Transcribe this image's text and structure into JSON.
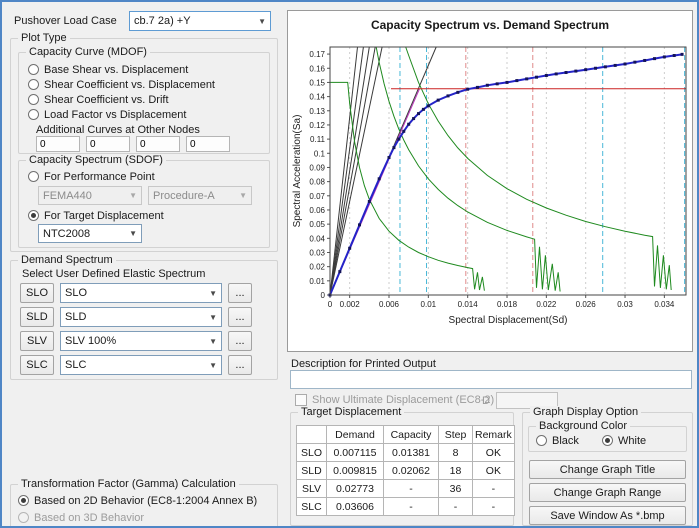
{
  "colors": {
    "accent_border": "#4f86c6",
    "window_bg": "#f0f0f0"
  },
  "left": {
    "load_case_label": "Pushover Load Case",
    "load_case_value": "cb.7 2a)  +Y",
    "plot_type_label": "Plot Type",
    "capacity_curve": {
      "label": "Capacity Curve (MDOF)",
      "options": [
        "Base Shear vs. Displacement",
        "Shear Coefficient vs. Displacement",
        "Shear Coefficient vs. Drift",
        "Load Factor vs Displacement"
      ],
      "additional_label": "Additional Curves at Other Nodes",
      "node_values": [
        "0",
        "0",
        "0",
        "0"
      ]
    },
    "capacity_spectrum": {
      "label": "Capacity Spectrum (SDOF)",
      "performance_point_label": "For Performance Point",
      "fema_value": "FEMA440",
      "procedure_value": "Procedure-A",
      "target_displacement_label": "For Target Displacement",
      "selected": "For Target Displacement",
      "code_value": "NTC2008"
    },
    "demand": {
      "label": "Demand Spectrum",
      "sub_label": "Select User Defined Elastic Spectrum",
      "more_label": "...",
      "rows": [
        {
          "key": "SLO",
          "value": "SLO"
        },
        {
          "key": "SLD",
          "value": "SLD"
        },
        {
          "key": "SLV",
          "value": "SLV 100%"
        },
        {
          "key": "SLC",
          "value": "SLC"
        }
      ]
    },
    "gamma": {
      "label": "Transformation Factor (Gamma) Calculation",
      "options": [
        "Based on 2D Behavior (EC8-1:2004  Annex B)",
        "Based on 3D Behavior"
      ],
      "selected": "Based on 2D Behavior (EC8-1:2004  Annex B)"
    }
  },
  "right": {
    "description_label": "Description for Printed Output",
    "description_value": "",
    "ultimate": {
      "label": "Show Ultimate Displacement  (EC8-2)",
      "checked": false,
      "d_label": "D",
      "value": ""
    },
    "target": {
      "label": "Target Displacement",
      "headers": [
        "",
        "Demand",
        "Capacity",
        "Step",
        "Remark"
      ],
      "rows": [
        {
          "key": "SLO",
          "cells": [
            "0.007115",
            "0.01381",
            "8",
            "OK"
          ]
        },
        {
          "key": "SLD",
          "cells": [
            "0.009815",
            "0.02062",
            "18",
            "OK"
          ]
        },
        {
          "key": "SLV",
          "cells": [
            "0.02773",
            "-",
            "36",
            "-"
          ]
        },
        {
          "key": "SLC",
          "cells": [
            "0.03606",
            "-",
            "-",
            "-"
          ]
        }
      ]
    },
    "graph_option": {
      "label": "Graph Display Option",
      "bg_label": "Background Color",
      "black_label": "Black",
      "white_label": "White",
      "selected": "White",
      "buttons": [
        "Change Graph Title",
        "Change Graph Range",
        "Save Window As *.bmp"
      ]
    }
  },
  "chart_data": {
    "type": "line",
    "title": "Capacity Spectrum vs. Demand Spectrum",
    "xlabel": "Spectral Displacement(Sd)",
    "ylabel": "Spectral Acceleration(Sa)",
    "xlim": [
      0,
      0.0362
    ],
    "ylim": [
      0,
      0.175
    ],
    "x_ticks": [
      0,
      0.002,
      0.006,
      0.01,
      0.014,
      0.018,
      0.022,
      0.026,
      0.03,
      0.034
    ],
    "y_ticks": [
      0,
      0.01,
      0.02,
      0.03,
      0.04,
      0.05,
      0.06,
      0.07,
      0.08,
      0.09,
      0.1,
      0.11,
      0.12,
      0.13,
      0.14,
      0.15,
      0.16,
      0.17
    ],
    "grid": "vertical-dashed",
    "legend": "none",
    "vlines": [
      {
        "name": "slo-demand",
        "x": 0.007115,
        "color": "#49b8d8"
      },
      {
        "name": "sld-demand",
        "x": 0.009815,
        "color": "#49b8d8"
      },
      {
        "name": "slo-capacity",
        "x": 0.01381,
        "color": "#e08a8a"
      },
      {
        "name": "sld-capacity",
        "x": 0.02062,
        "color": "#e08a8a"
      },
      {
        "name": "slv-demand",
        "x": 0.02773,
        "color": "#49b8d8"
      },
      {
        "name": "slc-demand",
        "x": 0.03606,
        "color": "#49b8d8"
      }
    ],
    "series": [
      {
        "name": "period-line-1",
        "color": "#3a3a3a",
        "width": 1,
        "points": [
          [
            0,
            0
          ],
          [
            0.0028,
            0.175
          ]
        ]
      },
      {
        "name": "period-line-2",
        "color": "#3a3a3a",
        "width": 1,
        "points": [
          [
            0,
            0
          ],
          [
            0.0034,
            0.175
          ]
        ]
      },
      {
        "name": "period-line-3",
        "color": "#3a3a3a",
        "width": 1,
        "points": [
          [
            0,
            0
          ],
          [
            0.004,
            0.175
          ]
        ]
      },
      {
        "name": "period-line-4",
        "color": "#3a3a3a",
        "width": 1,
        "points": [
          [
            0,
            0
          ],
          [
            0.0046,
            0.175
          ]
        ]
      },
      {
        "name": "period-line-5",
        "color": "#3a3a3a",
        "width": 1,
        "points": [
          [
            0,
            0
          ],
          [
            0.0053,
            0.175
          ]
        ]
      },
      {
        "name": "initial-stiffness-line",
        "color": "#3a3a3a",
        "width": 1,
        "points": [
          [
            0,
            0
          ],
          [
            0.0108,
            0.175
          ]
        ]
      },
      {
        "name": "demand-spectrum-slo",
        "color": "#1f8a1f",
        "width": 1,
        "points": [
          [
            0,
            0
          ],
          [
            0,
            0.15
          ],
          [
            0.0018,
            0.15
          ],
          [
            0.002,
            0.135
          ],
          [
            0.0025,
            0.108
          ],
          [
            0.003,
            0.09
          ],
          [
            0.0035,
            0.0771
          ],
          [
            0.004,
            0.0675
          ],
          [
            0.005,
            0.054
          ],
          [
            0.006,
            0.045
          ],
          [
            0.007,
            0.0386
          ],
          [
            0.008,
            0.0338
          ],
          [
            0.009,
            0.03
          ],
          [
            0.01,
            0.027
          ],
          [
            0.011,
            0.0245
          ],
          [
            0.012,
            0.0225
          ],
          [
            0.013,
            0.0208
          ],
          [
            0.014,
            0.0193
          ],
          [
            0.0145,
            0.0186
          ],
          [
            0.0147,
            0.004
          ],
          [
            0.015,
            0.016
          ],
          [
            0.0152,
            0.0035
          ],
          [
            0.0155,
            0.0128
          ],
          [
            0.0157,
            0.003
          ]
        ]
      },
      {
        "name": "demand-spectrum-sld",
        "color": "#1f8a1f",
        "width": 1,
        "points": [
          [
            0.0047,
            0.175
          ],
          [
            0.005,
            0.164
          ],
          [
            0.0055,
            0.149
          ],
          [
            0.006,
            0.1367
          ],
          [
            0.0065,
            0.1262
          ],
          [
            0.007,
            0.1171
          ],
          [
            0.0075,
            0.1093
          ],
          [
            0.008,
            0.1025
          ],
          [
            0.009,
            0.0911
          ],
          [
            0.01,
            0.082
          ],
          [
            0.011,
            0.0745
          ],
          [
            0.012,
            0.0683
          ],
          [
            0.013,
            0.0631
          ],
          [
            0.014,
            0.0586
          ],
          [
            0.016,
            0.0513
          ],
          [
            0.018,
            0.0456
          ],
          [
            0.02,
            0.041
          ],
          [
            0.0208,
            0.0394
          ],
          [
            0.021,
            0.005
          ],
          [
            0.0213,
            0.034
          ],
          [
            0.0216,
            0.004
          ],
          [
            0.0219,
            0.028
          ],
          [
            0.0222,
            0.0035
          ],
          [
            0.0226,
            0.022
          ],
          [
            0.0229,
            0.003
          ],
          [
            0.0232,
            0.016
          ],
          [
            0.0234,
            0.0025
          ]
        ]
      },
      {
        "name": "demand-spectrum-slv",
        "color": "#1f8a1f",
        "width": 1,
        "points": [
          [
            0.0077,
            0.175
          ],
          [
            0.008,
            0.169
          ],
          [
            0.009,
            0.15
          ],
          [
            0.01,
            0.135
          ],
          [
            0.011,
            0.1227
          ],
          [
            0.012,
            0.1125
          ],
          [
            0.013,
            0.1038
          ],
          [
            0.014,
            0.0964
          ],
          [
            0.016,
            0.0844
          ],
          [
            0.018,
            0.075
          ],
          [
            0.02,
            0.0675
          ],
          [
            0.022,
            0.0614
          ],
          [
            0.024,
            0.0563
          ],
          [
            0.026,
            0.0519
          ],
          [
            0.028,
            0.0482
          ],
          [
            0.03,
            0.045
          ],
          [
            0.032,
            0.0422
          ],
          [
            0.0328,
            0.0412
          ],
          [
            0.033,
            0.006
          ],
          [
            0.0333,
            0.035
          ],
          [
            0.0336,
            0.005
          ],
          [
            0.0339,
            0.028
          ],
          [
            0.0342,
            0.004
          ],
          [
            0.0345,
            0.021
          ],
          [
            0.0347,
            0.0035
          ]
        ]
      },
      {
        "name": "bilinear-elastic-branch",
        "color": "#bb33bb",
        "width": 1,
        "points": [
          [
            0,
            0
          ],
          [
            0.0091,
            0.1455
          ]
        ]
      },
      {
        "name": "plastic-plateau",
        "color": "#cc2222",
        "width": 1,
        "points": [
          [
            0.0062,
            0.1455
          ],
          [
            0.0362,
            0.1455
          ]
        ]
      },
      {
        "name": "capacity-spectrum",
        "color": "#2424c8",
        "width": 2,
        "marker": "square",
        "marker_color": "#14145a",
        "points": [
          [
            0,
            0
          ],
          [
            0.001,
            0.0165
          ],
          [
            0.002,
            0.033
          ],
          [
            0.003,
            0.0495
          ],
          [
            0.004,
            0.066
          ],
          [
            0.005,
            0.082
          ],
          [
            0.006,
            0.097
          ],
          [
            0.0065,
            0.104
          ],
          [
            0.007,
            0.11
          ],
          [
            0.0075,
            0.1155
          ],
          [
            0.008,
            0.1205
          ],
          [
            0.0085,
            0.1245
          ],
          [
            0.009,
            0.128
          ],
          [
            0.0095,
            0.131
          ],
          [
            0.01,
            0.1335
          ],
          [
            0.011,
            0.1375
          ],
          [
            0.012,
            0.1405
          ],
          [
            0.013,
            0.143
          ],
          [
            0.014,
            0.1452
          ],
          [
            0.015,
            0.1465
          ],
          [
            0.016,
            0.148
          ],
          [
            0.017,
            0.149
          ],
          [
            0.018,
            0.15
          ],
          [
            0.019,
            0.1513
          ],
          [
            0.02,
            0.1525
          ],
          [
            0.021,
            0.1537
          ],
          [
            0.022,
            0.1549
          ],
          [
            0.023,
            0.156
          ],
          [
            0.024,
            0.157
          ],
          [
            0.025,
            0.158
          ],
          [
            0.026,
            0.159
          ],
          [
            0.027,
            0.16
          ],
          [
            0.028,
            0.161
          ],
          [
            0.029,
            0.162
          ],
          [
            0.03,
            0.163
          ],
          [
            0.031,
            0.1643
          ],
          [
            0.032,
            0.1655
          ],
          [
            0.033,
            0.1668
          ],
          [
            0.034,
            0.168
          ],
          [
            0.035,
            0.169
          ],
          [
            0.0358,
            0.1698
          ]
        ]
      }
    ]
  }
}
